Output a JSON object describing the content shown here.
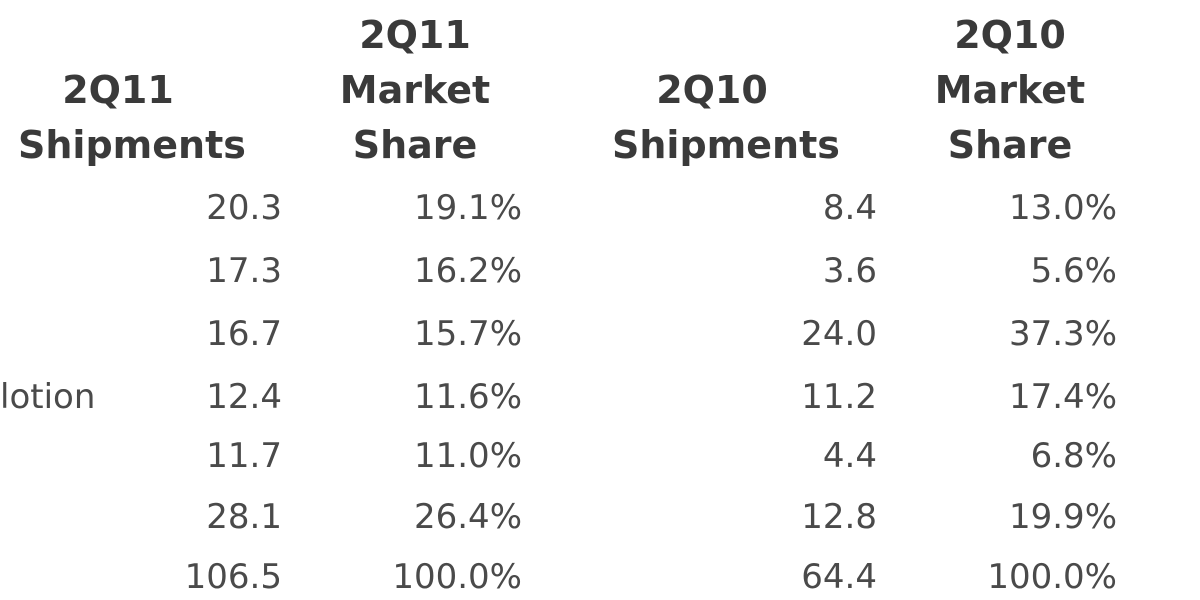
{
  "table": {
    "columns": [
      {
        "lines": [
          "",
          "2Q11",
          "Shipments"
        ]
      },
      {
        "lines": [
          "2Q11",
          "Market",
          "Share"
        ]
      },
      {
        "lines": [
          "",
          "2Q10",
          "Shipments"
        ]
      },
      {
        "lines": [
          "2Q10",
          "Market",
          "Share"
        ]
      }
    ],
    "rows": [
      {
        "vendor": "",
        "q11_shipments": "20.3",
        "q11_share": "19.1%",
        "q10_shipments": "8.4",
        "q10_share": "13.0%"
      },
      {
        "vendor": "",
        "q11_shipments": "17.3",
        "q11_share": "16.2%",
        "q10_shipments": "3.6",
        "q10_share": "5.6%"
      },
      {
        "vendor": "",
        "q11_shipments": "16.7",
        "q11_share": "15.7%",
        "q10_shipments": "24.0",
        "q10_share": "37.3%"
      },
      {
        "vendor": "lotion",
        "q11_shipments": "12.4",
        "q11_share": "11.6%",
        "q10_shipments": "11.2",
        "q10_share": "17.4%"
      },
      {
        "vendor": "",
        "q11_shipments": "11.7",
        "q11_share": "11.0%",
        "q10_shipments": "4.4",
        "q10_share": "6.8%"
      },
      {
        "vendor": "",
        "q11_shipments": "28.1",
        "q11_share": "26.4%",
        "q10_shipments": "12.8",
        "q10_share": "19.9%"
      },
      {
        "vendor": "",
        "q11_shipments": "106.5",
        "q11_share": "100.0%",
        "q10_shipments": "64.4",
        "q10_share": "100.0%"
      }
    ]
  }
}
